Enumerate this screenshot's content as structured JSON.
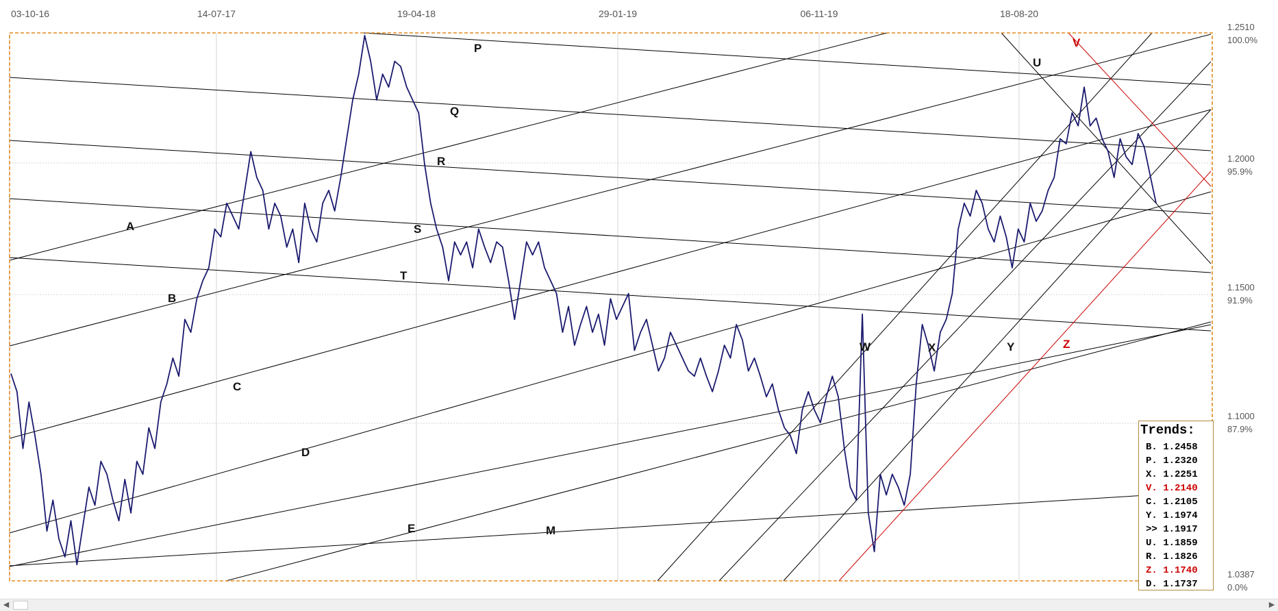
{
  "chart_data": {
    "type": "line",
    "title": "",
    "x_tick_labels": [
      "03-10-16",
      "14-07-17",
      "19-04-18",
      "29-01-19",
      "06-11-19",
      "18-08-20"
    ],
    "y_tick_labels": [
      {
        "price": "1.2510",
        "pct": "100.0%"
      },
      {
        "price": "1.2000",
        "pct": "95.9%"
      },
      {
        "price": "1.1500",
        "pct": "91.9%"
      },
      {
        "price": "1.1000",
        "pct": "87.9%"
      },
      {
        "price": "1.0387",
        "pct": "0.0%"
      }
    ],
    "ylim": [
      1.0387,
      1.251
    ],
    "grid": true,
    "colors": {
      "price_line": "#1a1a6e",
      "trend_line": "#000000",
      "red_trend": "#cc0000",
      "frame": "#e08a1e"
    },
    "series": [
      {
        "values": [
          1.119,
          1.112,
          1.09,
          1.108,
          1.095,
          1.08,
          1.058,
          1.07,
          1.055,
          1.048,
          1.062,
          1.045,
          1.06,
          1.075,
          1.068,
          1.085,
          1.08,
          1.07,
          1.062,
          1.078,
          1.065,
          1.085,
          1.08,
          1.098,
          1.09,
          1.108,
          1.115,
          1.125,
          1.118,
          1.14,
          1.135,
          1.148,
          1.155,
          1.16,
          1.175,
          1.172,
          1.185,
          1.18,
          1.175,
          1.19,
          1.205,
          1.195,
          1.19,
          1.175,
          1.185,
          1.18,
          1.168,
          1.175,
          1.162,
          1.185,
          1.175,
          1.17,
          1.185,
          1.19,
          1.182,
          1.195,
          1.21,
          1.225,
          1.235,
          1.25,
          1.24,
          1.225,
          1.235,
          1.23,
          1.24,
          1.238,
          1.23,
          1.225,
          1.22,
          1.2,
          1.185,
          1.175,
          1.168,
          1.155,
          1.17,
          1.165,
          1.17,
          1.16,
          1.175,
          1.168,
          1.162,
          1.17,
          1.168,
          1.155,
          1.14,
          1.155,
          1.17,
          1.165,
          1.17,
          1.16,
          1.155,
          1.15,
          1.135,
          1.145,
          1.13,
          1.138,
          1.145,
          1.135,
          1.142,
          1.13,
          1.148,
          1.14,
          1.145,
          1.15,
          1.128,
          1.135,
          1.14,
          1.13,
          1.12,
          1.125,
          1.135,
          1.13,
          1.125,
          1.12,
          1.118,
          1.125,
          1.118,
          1.112,
          1.12,
          1.13,
          1.125,
          1.138,
          1.132,
          1.12,
          1.125,
          1.118,
          1.11,
          1.115,
          1.105,
          1.098,
          1.095,
          1.088,
          1.105,
          1.112,
          1.105,
          1.1,
          1.11,
          1.118,
          1.11,
          1.09,
          1.075,
          1.07,
          1.142,
          1.065,
          1.05,
          1.08,
          1.072,
          1.08,
          1.075,
          1.068,
          1.08,
          1.115,
          1.138,
          1.13,
          1.12,
          1.135,
          1.14,
          1.15,
          1.175,
          1.185,
          1.18,
          1.19,
          1.185,
          1.175,
          1.17,
          1.18,
          1.172,
          1.16,
          1.175,
          1.17,
          1.185,
          1.178,
          1.182,
          1.19,
          1.195,
          1.21,
          1.208,
          1.22,
          1.215,
          1.23,
          1.215,
          1.218,
          1.21,
          1.205,
          1.195,
          1.21,
          1.203,
          1.2,
          1.212,
          1.207,
          1.196,
          1.185
        ]
      }
    ]
  },
  "trend_labels": [
    {
      "text": "A",
      "red": false
    },
    {
      "text": "B",
      "red": false
    },
    {
      "text": "C",
      "red": false
    },
    {
      "text": "D",
      "red": false
    },
    {
      "text": "E",
      "red": false
    },
    {
      "text": "M",
      "red": false
    },
    {
      "text": "P",
      "red": false
    },
    {
      "text": "Q",
      "red": false
    },
    {
      "text": "R",
      "red": false
    },
    {
      "text": "S",
      "red": false
    },
    {
      "text": "T",
      "red": false
    },
    {
      "text": "U",
      "red": false
    },
    {
      "text": "V",
      "red": true
    },
    {
      "text": "W",
      "red": false
    },
    {
      "text": "X",
      "red": false
    },
    {
      "text": "Y",
      "red": false
    },
    {
      "text": "Z",
      "red": true
    }
  ],
  "trends_box": {
    "title": "Trends:",
    "rows": [
      {
        "text": "B. 1.2458",
        "red": false
      },
      {
        "text": "P. 1.2320",
        "red": false
      },
      {
        "text": "X. 1.2251",
        "red": false
      },
      {
        "text": "V. 1.2140",
        "red": true
      },
      {
        "text": "C. 1.2105",
        "red": false
      },
      {
        "text": "Y. 1.1974",
        "red": false
      },
      {
        "text": ">> 1.1917",
        "red": false
      },
      {
        "text": "U. 1.1859",
        "red": false
      },
      {
        "text": "R. 1.1826",
        "red": false
      },
      {
        "text": "Z. 1.1740",
        "red": true
      },
      {
        "text": "D. 1.1737",
        "red": false
      }
    ]
  },
  "scrollbar": {
    "left_arrow": "◀",
    "right_arrow": "▶"
  }
}
